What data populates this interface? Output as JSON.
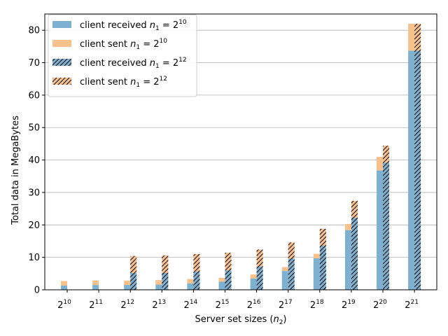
{
  "chart_data": {
    "type": "bar",
    "stacked": true,
    "grouped": true,
    "xlabel": "Server set sizes (n2)",
    "xlabel_parts": {
      "prefix": "Server set sizes (",
      "var": "n",
      "sub": "2",
      "suffix": ")"
    },
    "ylabel": "Total data in MegaBytes",
    "ylim": [
      0,
      85
    ],
    "yticks": [
      0,
      10,
      20,
      30,
      40,
      50,
      60,
      70,
      80
    ],
    "grid": "horizontal",
    "legend_position": "top-left",
    "categories": [
      "2^10",
      "2^11",
      "2^12",
      "2^13",
      "2^14",
      "2^15",
      "2^16",
      "2^17",
      "2^18",
      "2^19",
      "2^20",
      "2^21"
    ],
    "category_exponents": [
      "10",
      "11",
      "12",
      "13",
      "14",
      "15",
      "16",
      "17",
      "18",
      "19",
      "20",
      "21"
    ],
    "groups": [
      {
        "label": "n1 = 2^10",
        "exponent": "10",
        "hatched": false,
        "received": [
          1.3,
          1.5,
          1.5,
          1.6,
          2.0,
          2.5,
          3.5,
          5.8,
          9.7,
          18.4,
          36.8,
          73.7
        ],
        "sent": [
          1.4,
          1.4,
          1.3,
          1.4,
          1.3,
          1.2,
          1.2,
          1.2,
          1.4,
          1.9,
          4.2,
          8.3
        ]
      },
      {
        "label": "n1 = 2^12",
        "exponent": "12",
        "hatched": true,
        "received": [
          0,
          0,
          5.2,
          5.2,
          5.6,
          6.0,
          7.2,
          9.6,
          13.6,
          22.2,
          39.2,
          73.7
        ],
        "sent": [
          0,
          0,
          5.2,
          5.4,
          5.4,
          5.4,
          5.2,
          5.0,
          5.2,
          5.2,
          5.2,
          8.3
        ]
      }
    ],
    "series": [
      {
        "name": "client received n1 = 2^10",
        "legend_prefix": "client received ",
        "exp": "10",
        "color": "#7eb0d0",
        "hatch": false
      },
      {
        "name": "client sent n1 = 2^10",
        "legend_prefix": "client sent ",
        "exp": "10",
        "color": "#f8c08a",
        "hatch": false
      },
      {
        "name": "client received n1 = 2^12",
        "legend_prefix": "client received ",
        "exp": "12",
        "color": "#7eb0d0",
        "hatch": true
      },
      {
        "name": "client sent n1 = 2^12",
        "legend_prefix": "client sent ",
        "exp": "12",
        "color": "#f8c08a",
        "hatch": true
      }
    ],
    "colors": {
      "received": "#7eb0d0",
      "sent": "#f8c08a",
      "grid": "#b0b0b0",
      "hatch": "#000000"
    }
  }
}
